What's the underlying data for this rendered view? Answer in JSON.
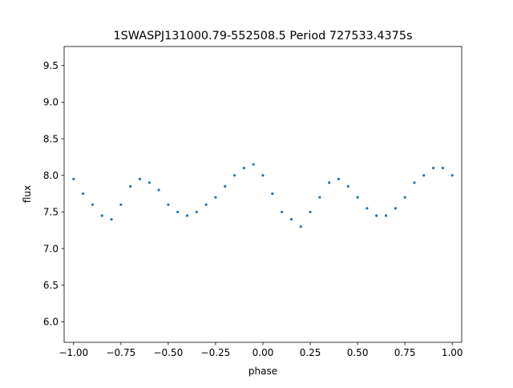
{
  "chart_data": {
    "type": "scatter",
    "title": "1SWASPJ131000.79-552508.5 Period 727533.4375s",
    "xlabel": "phase",
    "ylabel": "flux",
    "xlim": [
      -1.05,
      1.05
    ],
    "ylim": [
      5.72,
      9.76
    ],
    "x_ticks": [
      -1.0,
      -0.75,
      -0.5,
      -0.25,
      0.0,
      0.25,
      0.5,
      0.75,
      1.0
    ],
    "x_tick_labels": [
      "−1.00",
      "−0.75",
      "−0.50",
      "−0.25",
      "0.00",
      "0.25",
      "0.50",
      "0.75",
      "1.00"
    ],
    "y_ticks": [
      6.0,
      6.5,
      7.0,
      7.5,
      8.0,
      8.5,
      9.0,
      9.5
    ],
    "y_tick_labels": [
      "6.0",
      "6.5",
      "7.0",
      "7.5",
      "8.0",
      "8.5",
      "9.0",
      "9.5"
    ],
    "grid": false,
    "legend": "none",
    "point_color": "#1f77b4",
    "series": [
      {
        "x": [
          -1.0,
          -0.95,
          -0.9,
          -0.85,
          -0.8,
          -0.75,
          -0.7,
          -0.65,
          -0.6,
          -0.55,
          -0.5,
          -0.45,
          -0.4,
          -0.35,
          -0.3,
          -0.25,
          -0.2,
          -0.15,
          -0.1,
          -0.05,
          0.0,
          0.05,
          0.1,
          0.15,
          0.2,
          0.25,
          0.3,
          0.35,
          0.4,
          0.45,
          0.5,
          0.55,
          0.6,
          0.65,
          0.7,
          0.75,
          0.8,
          0.85,
          0.9,
          0.95,
          1.0
        ],
        "y": [
          7.95,
          7.75,
          7.6,
          7.45,
          7.4,
          7.6,
          7.85,
          7.95,
          7.9,
          7.8,
          7.6,
          7.5,
          7.45,
          7.5,
          7.6,
          7.7,
          7.85,
          8.0,
          8.1,
          8.15,
          8.0,
          7.75,
          7.5,
          7.4,
          7.3,
          7.5,
          7.7,
          7.9,
          7.95,
          7.85,
          7.7,
          7.55,
          7.45,
          7.45,
          7.55,
          7.7,
          7.9,
          8.0,
          8.1,
          8.1,
          8.0
        ]
      }
    ]
  }
}
